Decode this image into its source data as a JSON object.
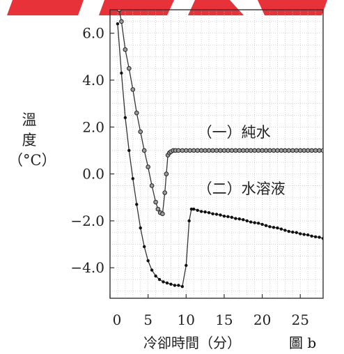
{
  "page": {
    "figure_label": "圖 b",
    "banner_color": "#e8323a"
  },
  "chart_data": {
    "type": "line",
    "xlabel": "冷卻時間（分）",
    "ylabel_lines": [
      "溫",
      "度",
      "（°C）"
    ],
    "xlim": [
      0,
      28
    ],
    "ylim": [
      -5.3,
      7.0
    ],
    "x_ticks": [
      0,
      5,
      10,
      15,
      20,
      25
    ],
    "x_tick_labels": [
      "0",
      "5",
      "10",
      "15",
      "20",
      "25"
    ],
    "y_ticks": [
      -4.0,
      -2.0,
      0.0,
      2.0,
      4.0,
      6.0
    ],
    "y_tick_labels": [
      "−4.0",
      "−2.0",
      "0.0",
      "2.0",
      "4.0",
      "6.0"
    ],
    "grid": true,
    "series": [
      {
        "name": "（一）純水",
        "marker": "open-circle",
        "x": [
          1.2,
          1.5,
          2.0,
          2.5,
          3.0,
          3.5,
          4.0,
          4.5,
          5.0,
          5.5,
          6.0,
          6.3,
          6.6,
          6.9,
          7.2,
          7.4,
          7.6,
          7.8,
          8.0,
          8.3,
          8.6,
          9.0,
          9.5,
          10,
          10.5,
          11,
          11.5,
          12,
          12.5,
          13,
          13.5,
          14,
          14.5,
          15,
          15.5,
          16,
          16.5,
          17,
          17.5,
          18,
          18.5,
          19,
          19.5,
          20,
          20.5,
          21,
          21.5,
          22,
          22.5,
          23,
          23.5,
          24,
          24.5,
          25,
          25.5,
          26,
          26.5,
          27,
          27.5,
          28
        ],
        "y": [
          7.0,
          6.5,
          5.3,
          4.5,
          3.6,
          2.6,
          1.8,
          1.0,
          0.3,
          -0.5,
          -1.2,
          -1.5,
          -1.65,
          -1.7,
          -0.8,
          0.0,
          0.8,
          0.9,
          0.95,
          1.0,
          1.0,
          1.0,
          1.0,
          1.0,
          1.0,
          1.0,
          1.0,
          1.0,
          1.0,
          1.0,
          1.0,
          1.0,
          1.0,
          1.0,
          1.0,
          1.0,
          1.0,
          1.0,
          1.0,
          1.0,
          1.0,
          1.0,
          1.0,
          1.0,
          1.0,
          1.0,
          1.0,
          1.0,
          1.0,
          1.0,
          1.0,
          1.0,
          1.0,
          1.0,
          1.0,
          1.0,
          1.0,
          1.0,
          1.0,
          1.0
        ],
        "label_x": 11.5,
        "label_y": 1.8
      },
      {
        "name": "（二）水溶液",
        "marker": "filled-dot",
        "x": [
          1.0,
          1.5,
          2.0,
          2.5,
          3.0,
          3.5,
          4.0,
          4.5,
          5.0,
          5.5,
          6.0,
          6.5,
          7.0,
          7.5,
          8.0,
          8.5,
          9.0,
          9.5,
          10.0,
          10.4,
          10.7,
          11,
          11.5,
          12,
          12.5,
          13,
          13.5,
          14,
          14.5,
          15,
          15.5,
          16,
          16.5,
          17,
          17.5,
          18,
          18.5,
          19,
          19.5,
          20,
          20.5,
          21,
          21.5,
          22,
          22.5,
          23,
          23.5,
          24,
          24.5,
          25,
          25.5,
          26,
          26.5,
          27,
          27.5,
          28
        ],
        "y": [
          6.4,
          4.3,
          2.4,
          1.0,
          -0.2,
          -1.3,
          -2.3,
          -3.1,
          -3.7,
          -4.1,
          -4.35,
          -4.5,
          -4.6,
          -4.65,
          -4.7,
          -4.75,
          -4.75,
          -4.8,
          -3.9,
          -2.0,
          -1.5,
          -1.5,
          -1.55,
          -1.6,
          -1.62,
          -1.65,
          -1.7,
          -1.72,
          -1.75,
          -1.8,
          -1.82,
          -1.85,
          -1.9,
          -1.92,
          -1.95,
          -2.0,
          -2.05,
          -2.08,
          -2.1,
          -2.15,
          -2.2,
          -2.25,
          -2.28,
          -2.3,
          -2.35,
          -2.4,
          -2.45,
          -2.48,
          -2.5,
          -2.55,
          -2.58,
          -2.6,
          -2.65,
          -2.68,
          -2.7,
          -2.75
        ],
        "label_x": 11.5,
        "label_y": -0.6
      }
    ]
  }
}
